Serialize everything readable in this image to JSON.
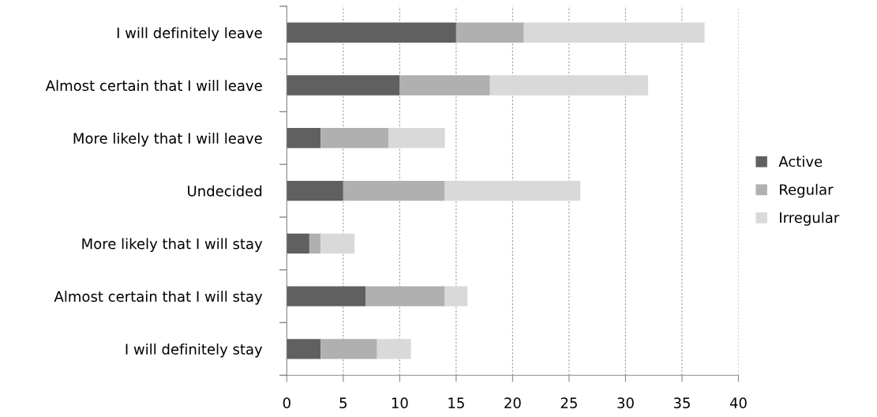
{
  "chart_data": {
    "type": "bar",
    "orientation": "horizontal",
    "stacked": true,
    "categories": [
      "I will definitely leave",
      "Almost certain that I will leave",
      "More likely that I will leave",
      "Undecided",
      "More likely that I will stay",
      "Almost certain that I will stay",
      "I will definitely stay"
    ],
    "series": [
      {
        "name": "Active",
        "color": "#606060",
        "values": [
          15,
          10,
          3,
          5,
          2,
          7,
          3
        ]
      },
      {
        "name": "Regular",
        "color": "#b0b0b0",
        "values": [
          6,
          8,
          6,
          9,
          1,
          7,
          5
        ]
      },
      {
        "name": "Irregular",
        "color": "#d9d9d9",
        "values": [
          16,
          14,
          5,
          12,
          3,
          2,
          3
        ]
      }
    ],
    "xlim": [
      0,
      40
    ],
    "xticks": [
      0,
      5,
      10,
      15,
      20,
      25,
      30,
      35,
      40
    ],
    "grid": "x",
    "legend": "right"
  }
}
